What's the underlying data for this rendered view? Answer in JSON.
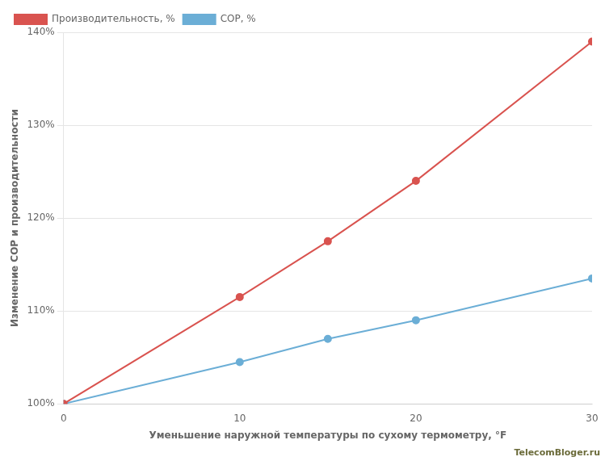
{
  "chart_data": {
    "type": "line",
    "x_label": "Уменьшение наружной температуры по сухому термометру, °F",
    "y_label": "Изменение СОР и производительности",
    "x": [
      0,
      10,
      15,
      20,
      30
    ],
    "series": [
      {
        "name": "Производительность, %",
        "color": "#d9534f",
        "values": [
          100,
          111.5,
          117.5,
          124.0,
          139.0
        ],
        "marker": "circle",
        "line_style": "solid"
      },
      {
        "name": "COP, %",
        "color": "#6baed6",
        "values": [
          100,
          104.5,
          107.0,
          109.0,
          113.5
        ],
        "marker": "circle",
        "line_style": "solid"
      }
    ],
    "xlim": [
      0,
      30
    ],
    "xticks": [
      0,
      10,
      20,
      30
    ],
    "ylim": [
      100,
      140
    ],
    "yticks": [
      {
        "value": 100,
        "label": "100%"
      },
      {
        "value": 110,
        "label": "110%"
      },
      {
        "value": 120,
        "label": "120%"
      },
      {
        "value": 130,
        "label": "130%"
      },
      {
        "value": 140,
        "label": "140%"
      }
    ],
    "grid": "y",
    "legend": "upper left",
    "annotations": [
      {
        "text": "TelecomBloger.ru",
        "color": "#6b6b3a"
      }
    ]
  }
}
